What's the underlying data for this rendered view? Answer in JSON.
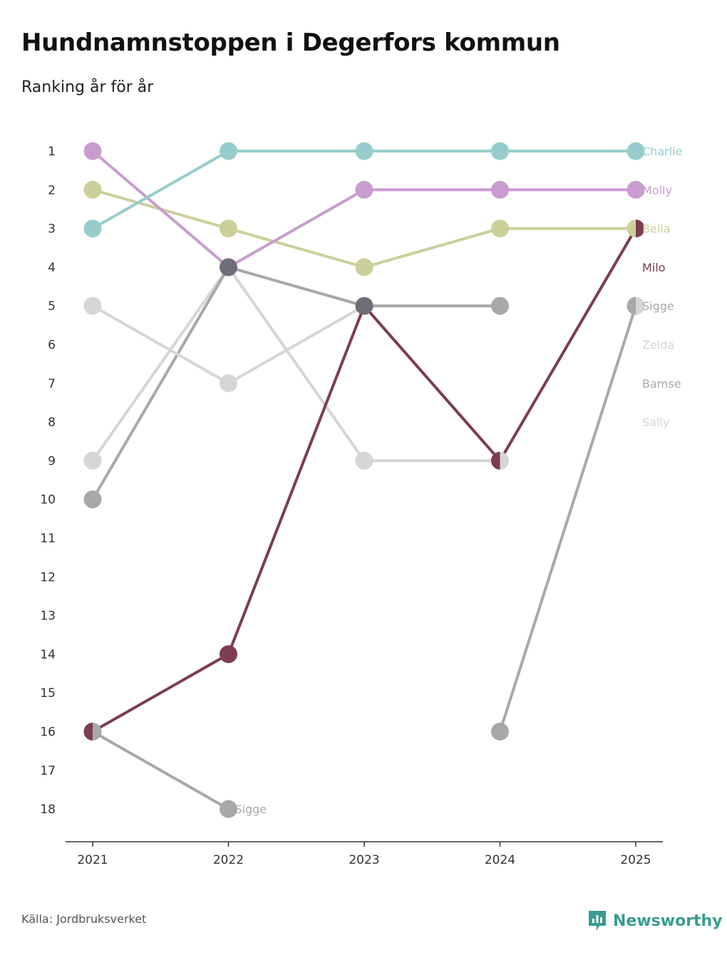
{
  "header": {
    "title": "Hundnamnstoppen i Degerfors kommun",
    "subtitle": "Ranking år för år"
  },
  "footer": {
    "source": "Källa: Jordbruksverket",
    "brand": "Newsworthy",
    "brand_icon": "newsworthy-logo-icon",
    "brand_color": "#3a9b8e"
  },
  "chart_data": {
    "type": "line",
    "x": [
      "2021",
      "2022",
      "2023",
      "2024",
      "2025"
    ],
    "yticks": [
      1,
      2,
      3,
      4,
      5,
      6,
      7,
      8,
      9,
      10,
      11,
      12,
      13,
      14,
      15,
      16,
      17,
      18
    ],
    "ylim": [
      1,
      18
    ],
    "y_reversed": true,
    "grid": false,
    "series": [
      {
        "name": "Sally",
        "color": "#d6d6d6",
        "values": [
          9,
          4,
          9,
          9,
          null
        ]
      },
      {
        "name": "Bamse",
        "color": "#a8a8a8",
        "values": [
          10,
          4,
          5,
          5,
          null
        ]
      },
      {
        "name": "Zelda",
        "color": "#d6d6d6",
        "values": [
          5,
          7,
          5,
          null,
          5
        ]
      },
      {
        "name": "Sigge",
        "color": "#a8a8a8",
        "values": [
          16,
          18,
          null,
          16,
          5
        ]
      },
      {
        "name": "Milo",
        "color": "#7c3c54",
        "values": [
          16,
          14,
          5,
          9,
          3
        ]
      },
      {
        "name": "Bella",
        "color": "#cccf9a",
        "values": [
          2,
          3,
          4,
          3,
          3
        ]
      },
      {
        "name": "Molly",
        "color": "#c99ccf",
        "values": [
          1,
          4,
          2,
          2,
          2
        ]
      },
      {
        "name": "Charlie",
        "color": "#96cdcc",
        "values": [
          3,
          1,
          1,
          1,
          1
        ]
      }
    ],
    "end_labels": [
      {
        "name": "Charlie",
        "rank": 1,
        "color": "#96cdcc"
      },
      {
        "name": "Molly",
        "rank": 2,
        "color": "#c99ccf"
      },
      {
        "name": "Bella",
        "rank": 3,
        "color": "#cccf9a"
      },
      {
        "name": "Milo",
        "rank": 4,
        "color": "#7c3c54"
      },
      {
        "name": "Sigge",
        "rank": 5,
        "color": "#a8a8a8"
      },
      {
        "name": "Zelda",
        "rank": 6,
        "color": "#d6d6d6"
      },
      {
        "name": "Bamse",
        "rank": 7,
        "color": "#a8a8a8"
      },
      {
        "name": "Sally",
        "rank": 8,
        "color": "#d6d6d6"
      }
    ],
    "point_labels": [
      {
        "name": "Sigge",
        "x": "2022",
        "rank": 18,
        "color": "#a8a8a8"
      }
    ],
    "overlap_point_color": "#6f6e78"
  }
}
